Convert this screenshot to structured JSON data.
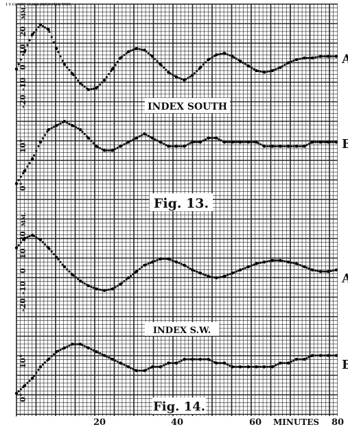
{
  "header_note": "1 V COMBE CLARK BREWSTER TYPE",
  "x_axis": {
    "ticks": [
      "20",
      "40",
      "60",
      "80"
    ],
    "minutes_label": "MINUTES"
  },
  "chart_data": [
    {
      "type": "line",
      "title": "Fig. 13.",
      "subtitle": "INDEX SOUTH",
      "xlim": [
        0,
        80
      ],
      "series": [
        {
          "name": "A",
          "units_label": "MM.",
          "yticks": [
            "20",
            "10",
            "0",
            "-10",
            "-20"
          ],
          "ylim": [
            -35,
            30
          ],
          "x": [
            0,
            2,
            4,
            6,
            8,
            10,
            12,
            14,
            16,
            18,
            20,
            22,
            24,
            26,
            28,
            30,
            32,
            34,
            36,
            38,
            40,
            42,
            44,
            46,
            48,
            50,
            52,
            54,
            56,
            58,
            60,
            62,
            64,
            66,
            68,
            70,
            72,
            74,
            76,
            78,
            80
          ],
          "values": [
            -5,
            6,
            17,
            23,
            20,
            8,
            -2,
            -8,
            -14,
            -18,
            -17,
            -12,
            -5,
            2,
            6,
            8,
            7,
            3,
            -2,
            -7,
            -10,
            -12,
            -9,
            -4,
            1,
            4,
            5,
            3,
            0,
            -3,
            -6,
            -7,
            -6,
            -4,
            -1,
            1,
            2,
            2,
            3,
            3,
            3
          ]
        },
        {
          "name": "B",
          "units_label": "",
          "yticks": [
            "10°",
            "0°"
          ],
          "ylim": [
            -2,
            17
          ],
          "x": [
            0,
            2,
            4,
            6,
            8,
            10,
            12,
            14,
            16,
            18,
            20,
            22,
            24,
            26,
            28,
            30,
            32,
            34,
            36,
            38,
            40,
            42,
            44,
            46,
            48,
            50,
            52,
            54,
            56,
            58,
            60,
            62,
            64,
            66,
            68,
            70,
            72,
            74,
            76,
            78,
            80
          ],
          "values": [
            0,
            3,
            6,
            10,
            13,
            14,
            15,
            14,
            13,
            11,
            9,
            8,
            8,
            9,
            10,
            11,
            12,
            11,
            10,
            9,
            9,
            9,
            10,
            10,
            11,
            11,
            10,
            10,
            10,
            10,
            10,
            9,
            9,
            9,
            9,
            9,
            9,
            10,
            10,
            10,
            10
          ]
        }
      ]
    },
    {
      "type": "line",
      "title": "Fig. 14.",
      "subtitle": "INDEX S.W.",
      "xlim": [
        0,
        80
      ],
      "series": [
        {
          "name": "A",
          "units_label": "MM.",
          "yticks": [
            "20",
            "10",
            "0",
            "-10",
            "-20"
          ],
          "ylim": [
            -35,
            30
          ],
          "x": [
            0,
            2,
            4,
            6,
            8,
            10,
            12,
            14,
            16,
            18,
            20,
            22,
            24,
            26,
            28,
            30,
            32,
            34,
            36,
            38,
            40,
            42,
            44,
            46,
            48,
            50,
            52,
            54,
            56,
            58,
            60,
            62,
            64,
            66,
            68,
            70,
            72,
            74,
            76,
            78,
            80
          ],
          "values": [
            12,
            18,
            20,
            17,
            12,
            6,
            0,
            -5,
            -9,
            -12,
            -14,
            -15,
            -14,
            -11,
            -7,
            -3,
            1,
            3,
            5,
            5,
            3,
            1,
            -2,
            -4,
            -6,
            -7,
            -6,
            -4,
            -2,
            0,
            2,
            3,
            4,
            4,
            3,
            2,
            0,
            -2,
            -3,
            -3,
            -2
          ]
        },
        {
          "name": "B",
          "units_label": "",
          "yticks": [
            "10°",
            "0°"
          ],
          "ylim": [
            -2,
            17
          ],
          "x": [
            0,
            2,
            4,
            6,
            8,
            10,
            12,
            14,
            16,
            18,
            20,
            22,
            24,
            26,
            28,
            30,
            32,
            34,
            36,
            38,
            40,
            42,
            44,
            46,
            48,
            50,
            52,
            54,
            56,
            58,
            60,
            62,
            64,
            66,
            68,
            70,
            72,
            74,
            76,
            78,
            80
          ],
          "values": [
            0,
            2,
            4,
            7,
            9,
            11,
            12,
            13,
            13,
            12,
            11,
            10,
            9,
            8,
            7,
            6,
            6,
            7,
            7,
            8,
            8,
            9,
            9,
            9,
            9,
            8,
            8,
            7,
            7,
            7,
            7,
            7,
            7,
            8,
            8,
            9,
            9,
            10,
            10,
            10,
            10
          ]
        }
      ]
    }
  ]
}
